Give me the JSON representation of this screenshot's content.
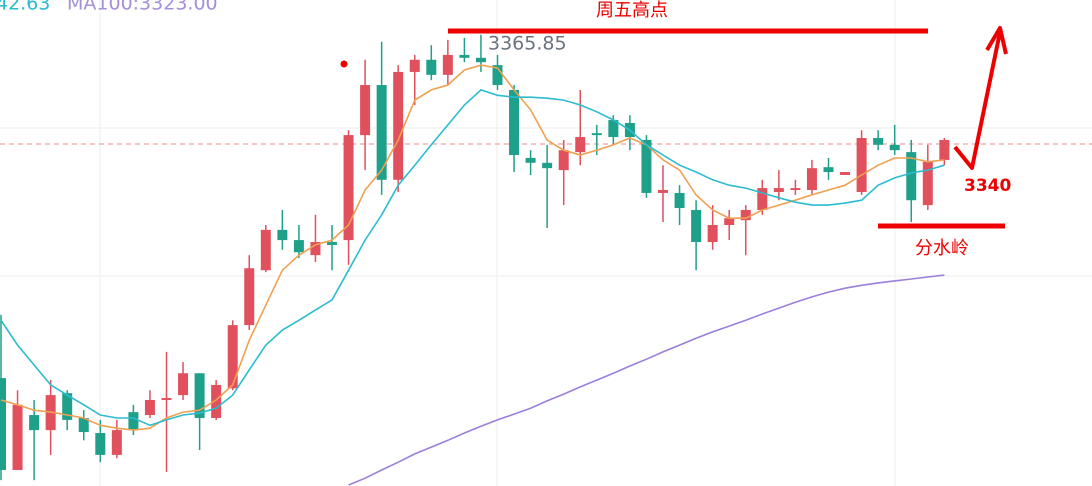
{
  "chart_data": {
    "type": "candlestick",
    "ylim": [
      3273,
      3373
    ],
    "up_color": "#e0505d",
    "down_color": "#1fa08a",
    "open": [
      3295.2,
      3276.3,
      3287.6,
      3284.5,
      3292.1,
      3287.0,
      3283.9,
      3279.4,
      3288.2,
      3287.6,
      3290.7,
      3291.7,
      3296.2,
      3287.0,
      3293.1,
      3306.1,
      3317.4,
      3325.7,
      3323.6,
      3320.5,
      3323.2,
      3323.6,
      3345.2,
      3355.5,
      3336.0,
      3358.2,
      3360.7,
      3357.6,
      3361.7,
      3361.1,
      3359.6,
      3354.5,
      3340.5,
      3339.5,
      3338.0,
      3341.7,
      3345.6,
      3348.3,
      3347.7,
      3344.2,
      3333.3,
      3333.3,
      3329.8,
      3323.2,
      3326.7,
      3327.7,
      3329.8,
      3333.5,
      3333.9,
      3333.9,
      3338.6,
      3337.0,
      3333.5,
      3344.6,
      3343.2,
      3341.7,
      3330.8,
      3340.1
    ],
    "high": [
      3308.2,
      3292.7,
      3290.7,
      3294.8,
      3292.7,
      3288.6,
      3286.6,
      3286.6,
      3289.7,
      3292.7,
      3300.6,
      3298.5,
      3296.2,
      3294.8,
      3307.1,
      3320.5,
      3326.7,
      3329.8,
      3326.7,
      3328.8,
      3326.7,
      3346.2,
      3360.7,
      3364.4,
      3359.6,
      3361.7,
      3363.7,
      3364.8,
      3365.2,
      3365.85,
      3361.7,
      3355.5,
      3342.1,
      3343.2,
      3344.2,
      3354.5,
      3347.3,
      3349.3,
      3349.3,
      3345.2,
      3339.0,
      3334.9,
      3331.8,
      3330.8,
      3329.8,
      3330.8,
      3336.0,
      3338.0,
      3336.0,
      3340.1,
      3340.5,
      3337.6,
      3346.2,
      3346.2,
      3347.3,
      3344.2,
      3343.2,
      3344.6
    ],
    "low": [
      3274.2,
      3276.3,
      3274.2,
      3279.4,
      3284.5,
      3282.4,
      3277.9,
      3278.7,
      3283.5,
      3287.0,
      3275.9,
      3290.7,
      3280.4,
      3286.6,
      3292.7,
      3305.1,
      3317.0,
      3321.6,
      3319.9,
      3319.1,
      3317.4,
      3318.5,
      3338.0,
      3332.9,
      3333.5,
      3351.4,
      3356.5,
      3355.5,
      3360.2,
      3358.2,
      3354.5,
      3337.6,
      3337.0,
      3326.1,
      3330.8,
      3339.0,
      3341.1,
      3343.2,
      3342.1,
      3332.3,
      3327.3,
      3326.7,
      3317.4,
      3321.6,
      3323.6,
      3320.5,
      3328.8,
      3331.8,
      3332.9,
      3332.9,
      3336.0,
      3337.0,
      3332.9,
      3342.1,
      3341.1,
      3327.3,
      3329.8,
      3339.0
    ],
    "close": [
      3276.3,
      3289.7,
      3284.5,
      3291.7,
      3286.6,
      3284.1,
      3279.4,
      3284.5,
      3284.5,
      3290.7,
      3291.1,
      3296.2,
      3287.0,
      3293.8,
      3306.1,
      3317.8,
      3325.7,
      3323.6,
      3321.1,
      3323.2,
      3322.6,
      3345.2,
      3355.5,
      3336.0,
      3358.2,
      3360.7,
      3357.6,
      3361.7,
      3361.1,
      3360.2,
      3355.5,
      3341.1,
      3339.5,
      3338.4,
      3342.1,
      3344.8,
      3345.2,
      3344.8,
      3344.8,
      3333.3,
      3333.9,
      3330.2,
      3323.2,
      3326.7,
      3328.1,
      3329.8,
      3334.3,
      3334.3,
      3334.3,
      3338.4,
      3337.6,
      3337.6,
      3344.6,
      3343.2,
      3342.1,
      3331.8,
      3339.7,
      3344.2
    ],
    "series": [
      {
        "color": "#f0a050",
        "values": [
          3290.7,
          3289.7,
          3288.6,
          3288.2,
          3287.6,
          3287.0,
          3285.5,
          3284.9,
          3284.5,
          3284.9,
          3287.0,
          3288.2,
          3288.6,
          3290.7,
          3293.8,
          3303.0,
          3310.2,
          3317.4,
          3320.5,
          3322.6,
          3323.6,
          3326.7,
          3333.9,
          3338.0,
          3344.2,
          3352.4,
          3354.5,
          3355.5,
          3358.6,
          3359.6,
          3359.0,
          3354.5,
          3350.4,
          3344.2,
          3342.1,
          3341.1,
          3342.1,
          3343.2,
          3344.6,
          3343.2,
          3340.1,
          3338.0,
          3332.9,
          3329.8,
          3328.1,
          3328.1,
          3329.8,
          3330.8,
          3331.8,
          3332.9,
          3333.9,
          3334.9,
          3337.0,
          3339.0,
          3340.5,
          3340.5,
          3339.7,
          3340.1
        ]
      },
      {
        "color": "#2bbcd0",
        "values": [
          3307.1,
          3302.0,
          3297.9,
          3293.8,
          3291.7,
          3289.7,
          3287.6,
          3287.0,
          3287.0,
          3285.5,
          3286.6,
          3287.6,
          3288.0,
          3289.0,
          3291.7,
          3296.9,
          3302.0,
          3305.1,
          3307.1,
          3309.2,
          3311.3,
          3317.4,
          3323.6,
          3328.8,
          3334.9,
          3339.0,
          3343.2,
          3347.3,
          3351.4,
          3354.5,
          3353.4,
          3353.0,
          3353.0,
          3352.8,
          3352.4,
          3351.4,
          3350.0,
          3348.3,
          3346.2,
          3343.2,
          3341.1,
          3339.0,
          3337.6,
          3336.0,
          3334.9,
          3334.3,
          3333.3,
          3332.3,
          3331.4,
          3330.8,
          3330.8,
          3331.2,
          3331.8,
          3334.9,
          3336.4,
          3337.4,
          3338.0,
          3339.0
        ]
      },
      {
        "color": "#9b7fdc",
        "values": [
          null,
          null,
          null,
          null,
          null,
          null,
          null,
          null,
          null,
          null,
          null,
          null,
          null,
          null,
          null,
          null,
          null,
          null,
          null,
          null,
          null,
          3273.2,
          3274.6,
          3276.3,
          3277.9,
          3279.6,
          3281.0,
          3282.4,
          3283.9,
          3285.3,
          3286.6,
          3287.8,
          3289.0,
          3290.5,
          3291.9,
          3293.4,
          3294.8,
          3296.2,
          3297.7,
          3299.1,
          3300.6,
          3302.0,
          3303.4,
          3304.7,
          3305.9,
          3307.1,
          3308.4,
          3309.6,
          3310.8,
          3311.9,
          3312.9,
          3313.7,
          3314.3,
          3314.8,
          3315.2,
          3315.6,
          3316.0,
          3316.4
        ]
      }
    ],
    "header": {
      "ma_short": "42.63",
      "ma100": "MA100:3323.00"
    },
    "annotations": {
      "friday_high": "周五高点",
      "high_label": "3365.85",
      "level": "3340",
      "watershed": "分水岭"
    }
  }
}
